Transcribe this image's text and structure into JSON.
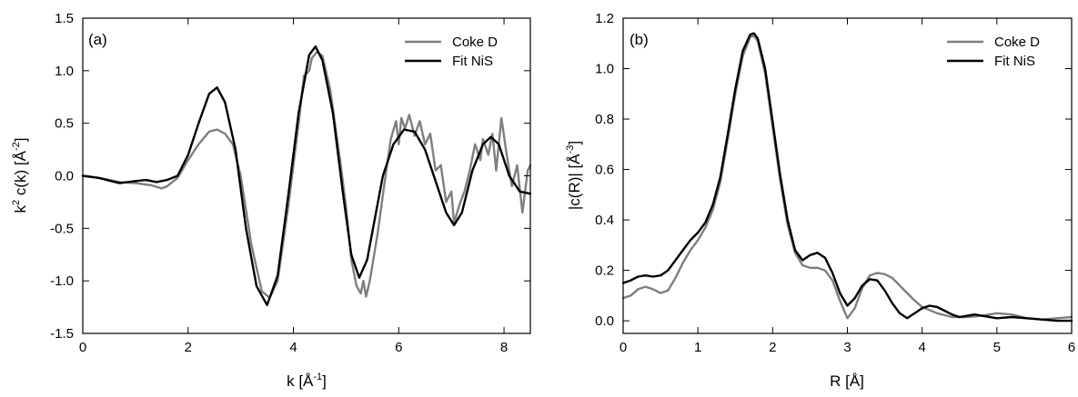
{
  "chart_data": [
    {
      "type": "line",
      "panel_label": "(a)",
      "xlabel": {
        "main": "k [Å",
        "sup": "-1",
        "tail": "]"
      },
      "ylabel": {
        "pre": "k",
        "sup1": "2",
        "mid": " c(k) [Å",
        "sup2": "-2",
        "tail": "]"
      },
      "xlim": [
        0,
        8.5
      ],
      "ylim": [
        -1.5,
        1.5
      ],
      "xticks": [
        0,
        2,
        4,
        6,
        8
      ],
      "yticks": [
        -1.5,
        -1.0,
        -0.5,
        0.0,
        0.5,
        1.0,
        1.5
      ],
      "xtick_labels": [
        "0",
        "2",
        "4",
        "6",
        "8"
      ],
      "ytick_labels": [
        "-1.5",
        "-1.0",
        "-0.5",
        "0.0",
        "0.5",
        "1.0",
        "1.5"
      ],
      "legend_position": "top-right",
      "grid": false,
      "series": [
        {
          "name": "Coke D",
          "color": "#7f7f7f",
          "points": [
            [
              0,
              0.0
            ],
            [
              0.3,
              -0.02
            ],
            [
              0.7,
              -0.06
            ],
            [
              1.0,
              -0.07
            ],
            [
              1.3,
              -0.09
            ],
            [
              1.5,
              -0.12
            ],
            [
              1.6,
              -0.1
            ],
            [
              1.8,
              -0.02
            ],
            [
              2.0,
              0.15
            ],
            [
              2.2,
              0.3
            ],
            [
              2.4,
              0.42
            ],
            [
              2.55,
              0.44
            ],
            [
              2.7,
              0.4
            ],
            [
              2.85,
              0.3
            ],
            [
              3.0,
              0.0
            ],
            [
              3.2,
              -0.65
            ],
            [
              3.4,
              -1.1
            ],
            [
              3.55,
              -1.16
            ],
            [
              3.7,
              -1.0
            ],
            [
              3.9,
              -0.3
            ],
            [
              4.1,
              0.5
            ],
            [
              4.2,
              0.95
            ],
            [
              4.3,
              1.0
            ],
            [
              4.35,
              1.12
            ],
            [
              4.45,
              1.18
            ],
            [
              4.55,
              1.14
            ],
            [
              4.7,
              0.82
            ],
            [
              4.9,
              0.1
            ],
            [
              5.0,
              -0.3
            ],
            [
              5.1,
              -0.8
            ],
            [
              5.2,
              -1.05
            ],
            [
              5.28,
              -1.12
            ],
            [
              5.33,
              -1.0
            ],
            [
              5.38,
              -1.15
            ],
            [
              5.45,
              -1.0
            ],
            [
              5.6,
              -0.55
            ],
            [
              5.75,
              0.0
            ],
            [
              5.85,
              0.35
            ],
            [
              5.95,
              0.52
            ],
            [
              6.0,
              0.3
            ],
            [
              6.05,
              0.55
            ],
            [
              6.12,
              0.45
            ],
            [
              6.2,
              0.58
            ],
            [
              6.3,
              0.38
            ],
            [
              6.4,
              0.52
            ],
            [
              6.5,
              0.3
            ],
            [
              6.6,
              0.4
            ],
            [
              6.7,
              0.05
            ],
            [
              6.8,
              0.1
            ],
            [
              6.9,
              -0.25
            ],
            [
              7.0,
              -0.15
            ],
            [
              7.05,
              -0.45
            ],
            [
              7.15,
              -0.28
            ],
            [
              7.25,
              -0.15
            ],
            [
              7.35,
              0.05
            ],
            [
              7.45,
              0.3
            ],
            [
              7.55,
              0.15
            ],
            [
              7.6,
              0.35
            ],
            [
              7.7,
              0.2
            ],
            [
              7.78,
              0.4
            ],
            [
              7.85,
              0.05
            ],
            [
              7.95,
              0.55
            ],
            [
              8.05,
              0.2
            ],
            [
              8.15,
              -0.1
            ],
            [
              8.25,
              0.1
            ],
            [
              8.35,
              -0.35
            ],
            [
              8.45,
              0.05
            ],
            [
              8.5,
              0.1
            ]
          ]
        },
        {
          "name": "Fit NiS",
          "color": "#000000",
          "points": [
            [
              0,
              0.0
            ],
            [
              0.3,
              -0.02
            ],
            [
              0.7,
              -0.07
            ],
            [
              1.0,
              -0.05
            ],
            [
              1.2,
              -0.04
            ],
            [
              1.4,
              -0.06
            ],
            [
              1.6,
              -0.04
            ],
            [
              1.8,
              0.0
            ],
            [
              2.0,
              0.2
            ],
            [
              2.2,
              0.5
            ],
            [
              2.4,
              0.78
            ],
            [
              2.55,
              0.84
            ],
            [
              2.7,
              0.7
            ],
            [
              2.9,
              0.25
            ],
            [
              3.1,
              -0.5
            ],
            [
              3.3,
              -1.05
            ],
            [
              3.5,
              -1.23
            ],
            [
              3.7,
              -0.95
            ],
            [
              3.9,
              -0.2
            ],
            [
              4.1,
              0.6
            ],
            [
              4.3,
              1.15
            ],
            [
              4.42,
              1.23
            ],
            [
              4.55,
              1.1
            ],
            [
              4.75,
              0.6
            ],
            [
              4.95,
              -0.2
            ],
            [
              5.1,
              -0.75
            ],
            [
              5.25,
              -0.97
            ],
            [
              5.4,
              -0.8
            ],
            [
              5.55,
              -0.4
            ],
            [
              5.7,
              0.0
            ],
            [
              5.9,
              0.3
            ],
            [
              6.1,
              0.44
            ],
            [
              6.3,
              0.42
            ],
            [
              6.5,
              0.25
            ],
            [
              6.7,
              -0.05
            ],
            [
              6.9,
              -0.35
            ],
            [
              7.05,
              -0.47
            ],
            [
              7.2,
              -0.35
            ],
            [
              7.4,
              0.05
            ],
            [
              7.6,
              0.3
            ],
            [
              7.75,
              0.37
            ],
            [
              7.9,
              0.3
            ],
            [
              8.1,
              0.0
            ],
            [
              8.3,
              -0.15
            ],
            [
              8.5,
              -0.17
            ]
          ]
        }
      ]
    },
    {
      "type": "line",
      "panel_label": "(b)",
      "xlabel": {
        "main": "R [Å]"
      },
      "ylabel": {
        "pre": "|c(R)| [Å",
        "sup": "-3",
        "tail": "]"
      },
      "xlim": [
        0,
        6
      ],
      "ylim": [
        -0.05,
        1.2
      ],
      "xticks": [
        0,
        1,
        2,
        3,
        4,
        5,
        6
      ],
      "yticks": [
        0.0,
        0.2,
        0.4,
        0.6,
        0.8,
        1.0,
        1.2
      ],
      "xtick_labels": [
        "0",
        "1",
        "2",
        "3",
        "4",
        "5",
        "6"
      ],
      "ytick_labels": [
        "0.0",
        "0.2",
        "0.4",
        "0.6",
        "0.8",
        "1.0",
        "1.2"
      ],
      "legend_position": "top-right",
      "grid": false,
      "series": [
        {
          "name": "Coke D",
          "color": "#7f7f7f",
          "points": [
            [
              0,
              0.09
            ],
            [
              0.1,
              0.1
            ],
            [
              0.2,
              0.125
            ],
            [
              0.3,
              0.135
            ],
            [
              0.4,
              0.125
            ],
            [
              0.5,
              0.11
            ],
            [
              0.6,
              0.12
            ],
            [
              0.7,
              0.17
            ],
            [
              0.8,
              0.23
            ],
            [
              0.9,
              0.28
            ],
            [
              1.0,
              0.32
            ],
            [
              1.1,
              0.37
            ],
            [
              1.2,
              0.44
            ],
            [
              1.3,
              0.55
            ],
            [
              1.4,
              0.72
            ],
            [
              1.5,
              0.9
            ],
            [
              1.6,
              1.05
            ],
            [
              1.7,
              1.125
            ],
            [
              1.75,
              1.13
            ],
            [
              1.8,
              1.11
            ],
            [
              1.9,
              0.98
            ],
            [
              2.0,
              0.77
            ],
            [
              2.1,
              0.56
            ],
            [
              2.2,
              0.38
            ],
            [
              2.3,
              0.27
            ],
            [
              2.4,
              0.22
            ],
            [
              2.5,
              0.21
            ],
            [
              2.6,
              0.21
            ],
            [
              2.7,
              0.2
            ],
            [
              2.8,
              0.16
            ],
            [
              2.9,
              0.08
            ],
            [
              3.0,
              0.01
            ],
            [
              3.1,
              0.05
            ],
            [
              3.2,
              0.13
            ],
            [
              3.3,
              0.18
            ],
            [
              3.4,
              0.19
            ],
            [
              3.5,
              0.185
            ],
            [
              3.6,
              0.17
            ],
            [
              3.7,
              0.14
            ],
            [
              3.8,
              0.11
            ],
            [
              3.9,
              0.08
            ],
            [
              4.0,
              0.055
            ],
            [
              4.2,
              0.03
            ],
            [
              4.4,
              0.015
            ],
            [
              4.6,
              0.015
            ],
            [
              4.8,
              0.02
            ],
            [
              5.0,
              0.03
            ],
            [
              5.2,
              0.025
            ],
            [
              5.4,
              0.01
            ],
            [
              5.6,
              0.005
            ],
            [
              5.8,
              0.01
            ],
            [
              6.0,
              0.015
            ]
          ]
        },
        {
          "name": "Fit NiS",
          "color": "#000000",
          "points": [
            [
              0,
              0.15
            ],
            [
              0.1,
              0.16
            ],
            [
              0.2,
              0.175
            ],
            [
              0.3,
              0.18
            ],
            [
              0.4,
              0.175
            ],
            [
              0.5,
              0.18
            ],
            [
              0.6,
              0.2
            ],
            [
              0.7,
              0.24
            ],
            [
              0.8,
              0.28
            ],
            [
              0.9,
              0.32
            ],
            [
              1.0,
              0.35
            ],
            [
              1.1,
              0.39
            ],
            [
              1.2,
              0.46
            ],
            [
              1.3,
              0.57
            ],
            [
              1.4,
              0.74
            ],
            [
              1.5,
              0.92
            ],
            [
              1.6,
              1.07
            ],
            [
              1.7,
              1.135
            ],
            [
              1.75,
              1.14
            ],
            [
              1.8,
              1.12
            ],
            [
              1.9,
              1.0
            ],
            [
              2.0,
              0.79
            ],
            [
              2.1,
              0.58
            ],
            [
              2.2,
              0.4
            ],
            [
              2.3,
              0.28
            ],
            [
              2.4,
              0.24
            ],
            [
              2.5,
              0.26
            ],
            [
              2.6,
              0.27
            ],
            [
              2.7,
              0.25
            ],
            [
              2.8,
              0.19
            ],
            [
              2.9,
              0.11
            ],
            [
              3.0,
              0.06
            ],
            [
              3.1,
              0.09
            ],
            [
              3.2,
              0.14
            ],
            [
              3.3,
              0.165
            ],
            [
              3.4,
              0.16
            ],
            [
              3.5,
              0.12
            ],
            [
              3.6,
              0.07
            ],
            [
              3.7,
              0.03
            ],
            [
              3.8,
              0.01
            ],
            [
              3.9,
              0.03
            ],
            [
              4.0,
              0.05
            ],
            [
              4.1,
              0.06
            ],
            [
              4.2,
              0.055
            ],
            [
              4.3,
              0.04
            ],
            [
              4.4,
              0.025
            ],
            [
              4.5,
              0.015
            ],
            [
              4.7,
              0.025
            ],
            [
              4.8,
              0.02
            ],
            [
              5.0,
              0.01
            ],
            [
              5.2,
              0.015
            ],
            [
              5.4,
              0.01
            ],
            [
              5.6,
              0.005
            ],
            [
              5.8,
              0.0
            ],
            [
              6.0,
              0.0
            ]
          ]
        }
      ]
    }
  ]
}
